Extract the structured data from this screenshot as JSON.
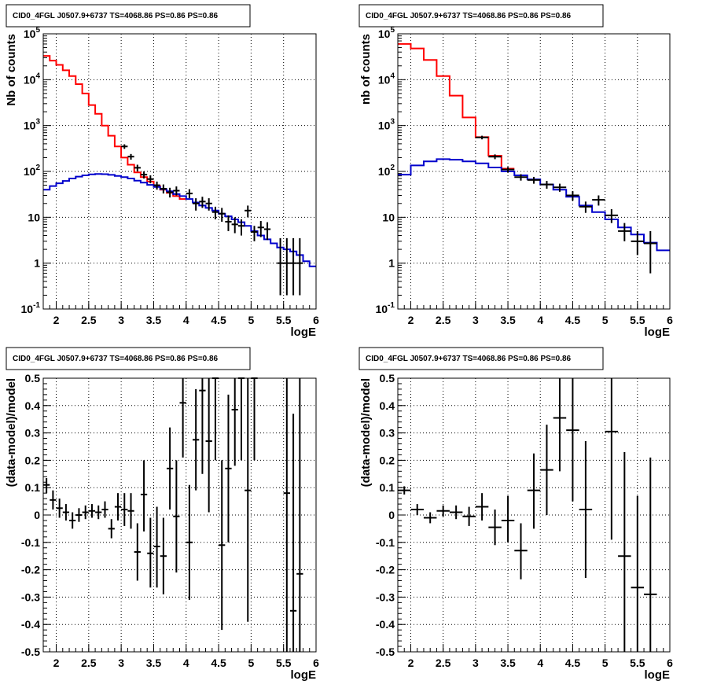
{
  "chart_data": [
    {
      "type": "line",
      "title": "CID0_4FGL J0507.9+6737 TS=4068.86 PS=0.86 PS=0.86",
      "xlabel": "logE",
      "ylabel": "Nb of counts",
      "xlim": [
        1.8,
        6.0
      ],
      "ylim": [
        0.1,
        100000
      ],
      "yscale": "log",
      "grid": true,
      "xticks": [
        2,
        2.5,
        3,
        3.5,
        4,
        4.5,
        5,
        5.5,
        6
      ],
      "xtick_labels": [
        "2",
        "2.5",
        "3",
        "3.5",
        "4",
        "4.5",
        "5",
        "5.5",
        "6"
      ],
      "yticks": [
        0.1,
        1,
        10,
        100,
        1000,
        10000,
        100000
      ],
      "ytick_labels": [
        "10^-1",
        "1",
        "10",
        "10^2",
        "10^3",
        "10^4",
        "10^5"
      ],
      "series": [
        {
          "style": "step",
          "color": "#ff0000",
          "edges": [
            1.8,
            1.9,
            2.0,
            2.1,
            2.2,
            2.3,
            2.4,
            2.5,
            2.6,
            2.7,
            2.8,
            2.9,
            3.0,
            3.1,
            3.2,
            3.3,
            3.4,
            3.5,
            3.6,
            3.7,
            3.8,
            3.9,
            4.0
          ],
          "values": [
            33000,
            26000,
            21000,
            16000,
            12000,
            8000,
            5000,
            2800,
            1800,
            1000,
            600,
            350,
            200,
            140,
            95,
            75,
            60,
            48,
            40,
            34,
            29,
            25
          ]
        },
        {
          "style": "step",
          "color": "#0000cc",
          "edges": [
            1.8,
            1.9,
            2.0,
            2.1,
            2.2,
            2.3,
            2.4,
            2.5,
            2.6,
            2.7,
            2.8,
            2.9,
            3.0,
            3.1,
            3.2,
            3.3,
            3.4,
            3.5,
            3.6,
            3.7,
            3.8,
            3.9,
            4.0,
            4.1,
            4.2,
            4.3,
            4.4,
            4.5,
            4.6,
            4.7,
            4.8,
            4.9,
            5.0,
            5.1,
            5.2,
            5.3,
            5.4,
            5.5,
            5.6,
            5.7,
            5.8,
            5.9,
            6.0
          ],
          "values": [
            40,
            48,
            55,
            62,
            70,
            77,
            82,
            86,
            88,
            87,
            84,
            80,
            75,
            70,
            63,
            57,
            51,
            46,
            41,
            37,
            32,
            29,
            25,
            21,
            18,
            16,
            14,
            12,
            10.5,
            9,
            7.8,
            6.5,
            5,
            4,
            3.3,
            2.7,
            2.2,
            2.0,
            1.8,
            1.5,
            1.1,
            0.85
          ]
        },
        {
          "style": "points",
          "color": "#000000",
          "x": [
            3.05,
            3.15,
            3.25,
            3.35,
            3.45,
            3.55,
            3.65,
            3.75,
            3.85,
            4.05,
            4.15,
            4.25,
            4.35,
            4.45,
            4.55,
            4.65,
            4.75,
            4.85,
            4.95,
            5.05,
            5.15,
            5.25,
            5.45,
            5.55,
            5.65,
            5.75
          ],
          "xerr": 0.05,
          "y": [
            350,
            210,
            120,
            85,
            68,
            50,
            42,
            35,
            38,
            33,
            20,
            22,
            20,
            13,
            12,
            8,
            7,
            6.5,
            14,
            4.8,
            6,
            5.5,
            1,
            1,
            1,
            1
          ],
          "ylow": [
            310,
            180,
            100,
            70,
            55,
            40,
            33,
            27,
            30,
            26,
            14,
            16,
            14,
            9,
            8,
            5,
            4.5,
            4,
            10,
            3,
            3.7,
            3.2,
            0.2,
            0.2,
            0.2,
            0.2
          ],
          "yhigh": [
            390,
            240,
            140,
            100,
            82,
            60,
            52,
            44,
            47,
            41,
            26,
            28,
            26,
            17,
            16,
            11,
            10,
            9,
            18,
            6.5,
            8.3,
            7.8,
            3.5,
            3.5,
            3.5,
            3.5
          ]
        }
      ]
    },
    {
      "type": "line",
      "title": "CID0_4FGL J0507.9+6737 TS=4068.86 PS=0.86 PS=0.86",
      "xlabel": "logE",
      "ylabel": "nb of counts",
      "xlim": [
        1.8,
        6.0
      ],
      "ylim": [
        0.1,
        100000
      ],
      "yscale": "log",
      "grid": true,
      "xticks": [
        2,
        2.5,
        3,
        3.5,
        4,
        4.5,
        5,
        5.5,
        6
      ],
      "xtick_labels": [
        "2",
        "2.5",
        "3",
        "3.5",
        "4",
        "4.5",
        "5",
        "5.5",
        "6"
      ],
      "yticks": [
        0.1,
        1,
        10,
        100,
        1000,
        10000,
        100000
      ],
      "ytick_labels": [
        "10^-1",
        "1",
        "10",
        "10^2",
        "10^3",
        "10^4",
        "10^5"
      ],
      "series": [
        {
          "style": "step",
          "color": "#ff0000",
          "edges": [
            1.8,
            2.0,
            2.2,
            2.4,
            2.6,
            2.8,
            3.0,
            3.2,
            3.4,
            3.6
          ],
          "values": [
            60000,
            48000,
            27000,
            12000,
            4500,
            1500,
            560,
            220,
            115
          ]
        },
        {
          "style": "step",
          "color": "#0000cc",
          "edges": [
            1.8,
            2.0,
            2.2,
            2.4,
            2.6,
            2.8,
            3.0,
            3.2,
            3.4,
            3.6,
            3.8,
            4.0,
            4.2,
            4.4,
            4.6,
            4.8,
            5.0,
            5.2,
            5.4,
            5.6,
            5.8,
            6.0
          ],
          "values": [
            85,
            135,
            165,
            185,
            180,
            165,
            150,
            122,
            100,
            82,
            67,
            52,
            40,
            28,
            18,
            13,
            9,
            6,
            4.2,
            2.8,
            1.9
          ]
        },
        {
          "style": "points",
          "color": "#000000",
          "x": [
            3.1,
            3.3,
            3.5,
            3.7,
            3.9,
            4.1,
            4.3,
            4.5,
            4.7,
            4.9,
            5.1,
            5.3,
            5.5,
            5.7
          ],
          "xerr": 0.1,
          "y": [
            550,
            210,
            110,
            75,
            65,
            52,
            45,
            30,
            17,
            24,
            11,
            5,
            3,
            2.7
          ],
          "ylow": [
            500,
            185,
            95,
            63,
            54,
            42,
            36,
            23,
            12.5,
            18,
            7.5,
            3,
            1.5,
            0.6
          ],
          "yhigh": [
            600,
            235,
            125,
            87,
            76,
            62,
            54,
            37,
            22,
            30,
            15,
            7.5,
            5,
            5
          ]
        }
      ]
    },
    {
      "type": "scatter",
      "title": "CID0_4FGL J0507.9+6737 TS=4068.86 PS=0.86 PS=0.86",
      "xlabel": "logE",
      "ylabel": "(data-model)/model",
      "xlim": [
        1.8,
        6.0
      ],
      "ylim": [
        -0.5,
        0.5
      ],
      "grid": true,
      "xticks": [
        2,
        2.5,
        3,
        3.5,
        4,
        4.5,
        5,
        5.5,
        6
      ],
      "xtick_labels": [
        "2",
        "2.5",
        "3",
        "3.5",
        "4",
        "4.5",
        "5",
        "5.5",
        "6"
      ],
      "yticks": [
        -0.5,
        -0.4,
        -0.3,
        -0.2,
        -0.1,
        0,
        0.1,
        0.2,
        0.3,
        0.4,
        0.5
      ],
      "ytick_labels": [
        "-0.5",
        "-0.4",
        "-0.3",
        "-0.2",
        "-0.1",
        "0",
        "0.1",
        "0.2",
        "0.3",
        "0.4",
        "0.5"
      ],
      "series": [
        {
          "style": "points",
          "color": "#000000",
          "xerr": 0.05,
          "x": [
            1.85,
            1.95,
            2.05,
            2.15,
            2.25,
            2.35,
            2.45,
            2.55,
            2.65,
            2.75,
            2.85,
            2.95,
            3.05,
            3.15,
            3.25,
            3.35,
            3.45,
            3.55,
            3.65,
            3.75,
            3.85,
            3.95,
            4.05,
            4.15,
            4.25,
            4.35,
            4.45,
            4.55,
            4.65,
            4.75,
            4.85,
            4.95,
            5.05,
            5.55,
            5.65,
            5.75
          ],
          "y": [
            0.11,
            0.055,
            0.025,
            0.01,
            -0.02,
            0.0,
            0.01,
            0.015,
            0.01,
            0.02,
            -0.05,
            0.03,
            0.02,
            0.015,
            -0.135,
            0.075,
            -0.14,
            -0.115,
            -0.15,
            0.17,
            -0.005,
            0.41,
            -0.1,
            0.275,
            0.455,
            0.27,
            0.5,
            -0.11,
            0.17,
            0.385,
            0.5,
            0.09,
            0.5,
            0.08,
            -0.35,
            -0.215
          ],
          "ylow": [
            0.08,
            0.02,
            -0.01,
            -0.02,
            -0.05,
            -0.025,
            -0.015,
            -0.01,
            -0.015,
            -0.01,
            -0.085,
            -0.02,
            -0.04,
            -0.05,
            -0.24,
            -0.06,
            -0.265,
            -0.265,
            -0.29,
            0.02,
            -0.21,
            0.21,
            -0.31,
            0.09,
            0.15,
            0.01,
            0.2,
            -0.42,
            -0.1,
            0.18,
            0.2,
            -0.39,
            0.2,
            -0.5,
            -0.5,
            -0.5
          ],
          "yhigh": [
            0.135,
            0.09,
            0.06,
            0.04,
            0.01,
            0.025,
            0.035,
            0.04,
            0.035,
            0.05,
            -0.015,
            0.08,
            0.08,
            0.08,
            -0.03,
            0.2,
            -0.01,
            0.03,
            -0.01,
            0.32,
            0.2,
            0.5,
            0.11,
            0.46,
            0.5,
            0.5,
            0.5,
            0.2,
            0.44,
            0.5,
            0.5,
            0.5,
            0.5,
            0.5,
            0.37,
            0.5
          ]
        }
      ]
    },
    {
      "type": "scatter",
      "title": "CID0_4FGL J0507.9+6737 TS=4068.86 PS=0.86 PS=0.86",
      "xlabel": "logE",
      "ylabel": "(data-model)/model",
      "xlim": [
        1.8,
        6.0
      ],
      "ylim": [
        -0.5,
        0.5
      ],
      "grid": true,
      "xticks": [
        2,
        2.5,
        3,
        3.5,
        4,
        4.5,
        5,
        5.5,
        6
      ],
      "xtick_labels": [
        "2",
        "2.5",
        "3",
        "3.5",
        "4",
        "4.5",
        "5",
        "5.5",
        "6"
      ],
      "yticks": [
        -0.5,
        -0.4,
        -0.3,
        -0.2,
        -0.1,
        0,
        0.1,
        0.2,
        0.3,
        0.4,
        0.5
      ],
      "ytick_labels": [
        "-0.5",
        "-0.4",
        "-0.3",
        "-0.2",
        "-0.1",
        "0",
        "0.1",
        "0.2",
        "0.3",
        "0.4",
        "0.5"
      ],
      "series": [
        {
          "style": "points",
          "color": "#000000",
          "xerr": 0.1,
          "x": [
            1.9,
            2.1,
            2.3,
            2.5,
            2.7,
            2.9,
            3.1,
            3.3,
            3.5,
            3.7,
            3.9,
            4.1,
            4.3,
            4.5,
            4.7,
            5.1,
            5.3,
            5.5,
            5.7
          ],
          "y": [
            0.09,
            0.02,
            -0.01,
            0.015,
            0.01,
            -0.005,
            0.03,
            -0.045,
            -0.02,
            -0.13,
            0.09,
            0.165,
            0.355,
            0.31,
            0.02,
            0.305,
            -0.15,
            -0.265,
            -0.29
          ],
          "ylow": [
            0.075,
            0.0,
            -0.03,
            -0.005,
            -0.015,
            -0.04,
            -0.02,
            -0.11,
            -0.1,
            -0.235,
            -0.05,
            0.0,
            0.16,
            0.05,
            -0.23,
            -0.09,
            -0.5,
            -0.5,
            -0.5
          ],
          "yhigh": [
            0.105,
            0.04,
            0.01,
            0.035,
            0.035,
            0.03,
            0.08,
            0.02,
            0.07,
            -0.03,
            0.225,
            0.33,
            0.5,
            0.5,
            0.27,
            0.5,
            0.23,
            0.07,
            0.21
          ]
        }
      ]
    }
  ]
}
